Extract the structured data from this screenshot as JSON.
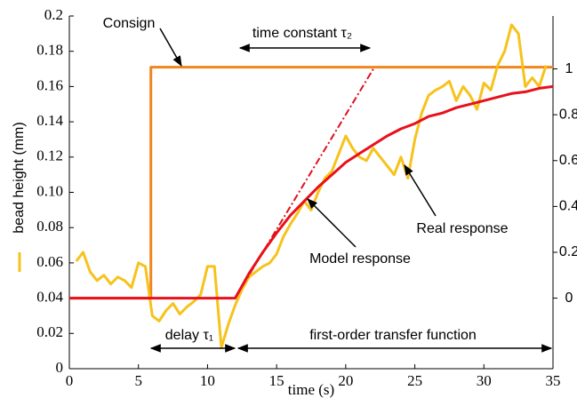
{
  "chart_data": {
    "type": "line",
    "xlabel": "time (s)",
    "ylabel": "bead height (mm)",
    "xlim": [
      0,
      35
    ],
    "xticks": [
      0,
      5,
      10,
      15,
      20,
      25,
      30,
      35
    ],
    "ylim": [
      0,
      0.2
    ],
    "yticks": [
      0,
      0.02,
      0.04,
      0.06,
      0.08,
      {
        "value": 0.1,
        "label": "0.10"
      },
      0.12,
      0.14,
      0.16,
      0.18,
      0.2
    ],
    "y2lim": [
      -0.3077,
      1.2308
    ],
    "y2ticks": [
      0,
      0.2,
      0.4,
      0.6,
      0.8,
      1
    ],
    "series": [
      {
        "name": "Consign",
        "color": "#f0861e",
        "x": [
          0,
          5.9,
          5.9,
          35
        ],
        "values": [
          0.04,
          0.04,
          0.171,
          0.171
        ]
      },
      {
        "name": "Real response",
        "color": "#f7c21b",
        "x": [
          0.5,
          1,
          1.5,
          2,
          2.5,
          3,
          3.5,
          4,
          4.5,
          5,
          5.5,
          6,
          6.5,
          7,
          7.5,
          8,
          8.5,
          9,
          9.5,
          10,
          10.5,
          11,
          11.5,
          12,
          12.5,
          13,
          13.5,
          14,
          14.5,
          15,
          15.5,
          16,
          16.5,
          17,
          17.5,
          18,
          18.5,
          19,
          19.5,
          20,
          20.5,
          21,
          21.5,
          22,
          22.5,
          23,
          23.5,
          24,
          24.5,
          25,
          25.5,
          26,
          26.5,
          27,
          27.5,
          28,
          28.5,
          29,
          29.5,
          30,
          30.5,
          31,
          31.5,
          32,
          32.5,
          33,
          33.5,
          34,
          34.5
        ],
        "values": [
          0.061,
          0.066,
          0.055,
          0.05,
          0.053,
          0.048,
          0.052,
          0.05,
          0.046,
          0.06,
          0.058,
          0.03,
          0.027,
          0.033,
          0.037,
          0.031,
          0.035,
          0.038,
          0.042,
          0.058,
          0.058,
          0.012,
          0.025,
          0.036,
          0.045,
          0.052,
          0.055,
          0.058,
          0.06,
          0.065,
          0.075,
          0.082,
          0.088,
          0.095,
          0.09,
          0.1,
          0.108,
          0.112,
          0.122,
          0.132,
          0.125,
          0.12,
          0.118,
          0.125,
          0.12,
          0.115,
          0.11,
          0.12,
          0.108,
          0.13,
          0.145,
          0.155,
          0.158,
          0.16,
          0.163,
          0.152,
          0.16,
          0.155,
          0.147,
          0.162,
          0.158,
          0.172,
          0.18,
          0.195,
          0.19,
          0.16,
          0.165,
          0.16,
          0.172
        ]
      },
      {
        "name": "Tangent",
        "color": "#e0101e",
        "dash": true,
        "x": [
          12,
          22
        ],
        "values": [
          0.04,
          0.17
        ]
      },
      {
        "name": "Model response",
        "color": "#e8101a",
        "x": [
          0,
          12,
          13,
          14,
          15,
          16,
          17,
          18,
          19,
          20,
          21,
          22,
          23,
          24,
          25,
          26,
          27,
          28,
          29,
          30,
          31,
          32,
          33,
          34,
          35
        ],
        "values": [
          0.04,
          0.04,
          0.054,
          0.066,
          0.077,
          0.087,
          0.095,
          0.103,
          0.11,
          0.117,
          0.122,
          0.127,
          0.132,
          0.136,
          0.139,
          0.143,
          0.145,
          0.148,
          0.15,
          0.152,
          0.154,
          0.156,
          0.157,
          0.159,
          0.16
        ]
      }
    ],
    "annotations": [
      "Consign",
      "time constant τ₂",
      "delay τ₁",
      "first-order transfer function",
      "Real response",
      "Model response"
    ]
  }
}
